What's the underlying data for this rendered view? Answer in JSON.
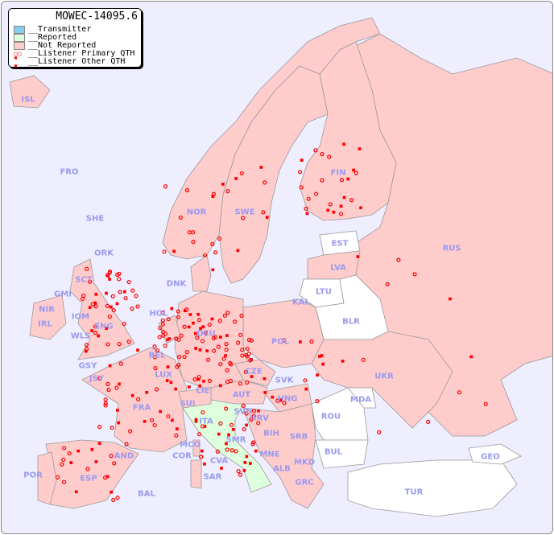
{
  "title": "MOWEC-14095.6",
  "legend": [
    {
      "label": "__Transmitter",
      "color": "#88ccee",
      "kind": "swatch"
    },
    {
      "label": "__Reported",
      "color": "#ddffdd",
      "kind": "swatch"
    },
    {
      "label": "__Not Reported",
      "color": "#ffcccc",
      "kind": "swatch"
    },
    {
      "label": "__Listener Primary QTH",
      "kind": "circle"
    },
    {
      "label": "__Listener Other QTH",
      "kind": "square"
    }
  ],
  "colors": {
    "sea": "#eeeeff",
    "not_reported": "#ffcccc",
    "reported": "#ddffdd",
    "no_data": "#ffffff",
    "marker": "#ff0000",
    "label": "#9999ee"
  },
  "countries": [
    "ISL",
    "FRO",
    "SHE",
    "ORK",
    "NOR",
    "SWE",
    "FIN",
    "EST",
    "LVA",
    "LTU",
    "KAL",
    "BLR",
    "RUS",
    "DNK",
    "HOL",
    "DEU",
    "POL",
    "BEL",
    "LUX",
    "CZE",
    "SVK",
    "UKR",
    "MDA",
    "HNG",
    "AUT",
    "LIE",
    "SUI",
    "FRA",
    "SVN",
    "HRV",
    "ITA",
    "ROU",
    "SRB",
    "BIH",
    "MNE",
    "MKD",
    "ALB",
    "BUL",
    "GRC",
    "TUR",
    "GEO",
    "MCO",
    "COR",
    "CVA",
    "SMR",
    "SAR",
    "AND",
    "POR",
    "ESP",
    "BAL",
    "GSY",
    "JSY",
    "IRL",
    "NIR",
    "GMI",
    "IOM",
    "WLS",
    "ENG",
    "SCT"
  ]
}
